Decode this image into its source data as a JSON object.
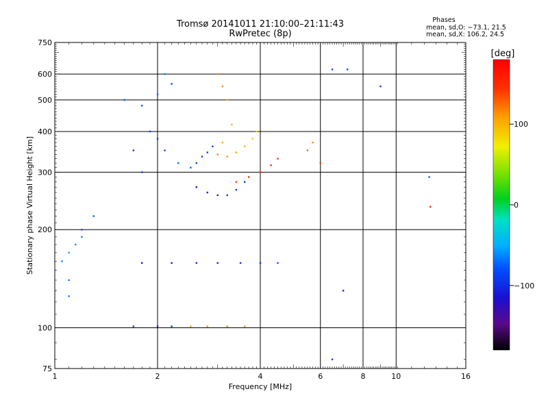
{
  "chart_data": {
    "type": "scatter",
    "title": "Tromsø 20141011 21:10:00–21:11:43",
    "subtitle": "RwPretec (8p)",
    "xlabel": "Frequency [MHz]",
    "ylabel": "Stationary phase Virtual Height [km]",
    "x_scale": "log",
    "y_scale": "log",
    "xlim": [
      1,
      16
    ],
    "ylim": [
      75,
      750
    ],
    "x_ticks": [
      1,
      2,
      4,
      6,
      8,
      10,
      16
    ],
    "y_ticks": [
      75,
      100,
      200,
      300,
      400,
      500,
      600,
      750
    ],
    "x_gridlines": [
      2,
      4,
      6,
      8,
      10
    ],
    "y_gridlines": [
      100,
      200,
      300,
      400,
      500,
      600
    ],
    "grid": true,
    "stats": {
      "header": "Phases",
      "line_o": "mean, sd,O: −73.1, 21.5",
      "line_x": "mean, sd,X: 106.2, 24.5"
    },
    "colorbar": {
      "label": "[deg]",
      "range": [
        -180,
        180
      ],
      "ticks": [
        100,
        0,
        -100
      ],
      "tick_labels": [
        "100",
        "0",
        "−100"
      ]
    },
    "series": [
      {
        "values": [
          [
            1.0,
            150,
            -70
          ],
          [
            1.05,
            160,
            -60
          ],
          [
            1.1,
            170,
            -55
          ],
          [
            1.15,
            180,
            -60
          ],
          [
            1.2,
            190,
            -65
          ],
          [
            1.1,
            140,
            -70
          ],
          [
            1.0,
            130,
            -75
          ],
          [
            1.2,
            200,
            -80
          ],
          [
            1.3,
            220,
            -75
          ],
          [
            1.1,
            125,
            -70
          ]
        ]
      },
      {
        "values": [
          [
            1.6,
            500,
            -75
          ],
          [
            1.8,
            480,
            -80
          ],
          [
            2.0,
            520,
            -70
          ],
          [
            2.1,
            600,
            -65
          ],
          [
            2.2,
            560,
            -85
          ],
          [
            1.9,
            400,
            -90
          ],
          [
            2.0,
            380,
            -95
          ],
          [
            2.1,
            350,
            -85
          ],
          [
            1.7,
            350,
            -100
          ],
          [
            1.8,
            300,
            -95
          ]
        ]
      },
      {
        "values": [
          [
            2.3,
            320,
            -70
          ],
          [
            2.5,
            310,
            -75
          ],
          [
            2.6,
            320,
            -80
          ],
          [
            2.7,
            335,
            -85
          ],
          [
            2.8,
            345,
            -90
          ],
          [
            2.9,
            360,
            -95
          ]
        ]
      },
      {
        "values": [
          [
            2.6,
            270,
            -110
          ],
          [
            2.8,
            260,
            -105
          ],
          [
            3.0,
            255,
            -100
          ],
          [
            3.2,
            255,
            -95
          ],
          [
            3.4,
            265,
            -95
          ],
          [
            3.6,
            280,
            -90
          ]
        ]
      },
      {
        "values": [
          [
            1.8,
            158,
            -115
          ],
          [
            2.2,
            158,
            -112
          ],
          [
            2.6,
            158,
            -110
          ],
          [
            3.0,
            158,
            -105
          ],
          [
            3.5,
            158,
            -100
          ],
          [
            4.0,
            158,
            -95
          ],
          [
            4.5,
            158,
            -80
          ]
        ]
      },
      {
        "values": [
          [
            1.7,
            101,
            -90
          ],
          [
            2.0,
            101,
            -110
          ],
          [
            2.2,
            101,
            -100
          ],
          [
            2.5,
            101,
            110
          ],
          [
            2.8,
            101,
            115
          ],
          [
            3.2,
            101,
            120
          ],
          [
            3.6,
            101,
            115
          ]
        ]
      },
      {
        "values": [
          [
            3.0,
            600,
            120
          ],
          [
            3.1,
            550,
            115
          ],
          [
            3.2,
            500,
            110
          ],
          [
            3.3,
            420,
            100
          ],
          [
            3.1,
            370,
            105
          ],
          [
            3.0,
            340,
            120
          ]
        ]
      },
      {
        "values": [
          [
            3.2,
            335,
            115
          ],
          [
            3.4,
            345,
            110
          ],
          [
            3.6,
            360,
            100
          ],
          [
            3.8,
            380,
            95
          ],
          [
            3.9,
            400,
            90
          ]
        ]
      },
      {
        "values": [
          [
            3.4,
            280,
            140
          ],
          [
            3.7,
            290,
            145
          ],
          [
            4.0,
            300,
            150
          ],
          [
            4.3,
            315,
            150
          ],
          [
            4.5,
            330,
            145
          ]
        ]
      },
      {
        "values": [
          [
            5.5,
            350,
            130
          ],
          [
            5.7,
            370,
            120
          ],
          [
            6.0,
            320,
            140
          ],
          [
            6.5,
            620,
            -85
          ],
          [
            7.0,
            130,
            -110
          ],
          [
            7.2,
            620,
            -90
          ],
          [
            9.0,
            550,
            -100
          ],
          [
            12.5,
            290,
            -80
          ],
          [
            12.6,
            235,
            160
          ],
          [
            6.5,
            80,
            -90
          ]
        ]
      }
    ]
  }
}
